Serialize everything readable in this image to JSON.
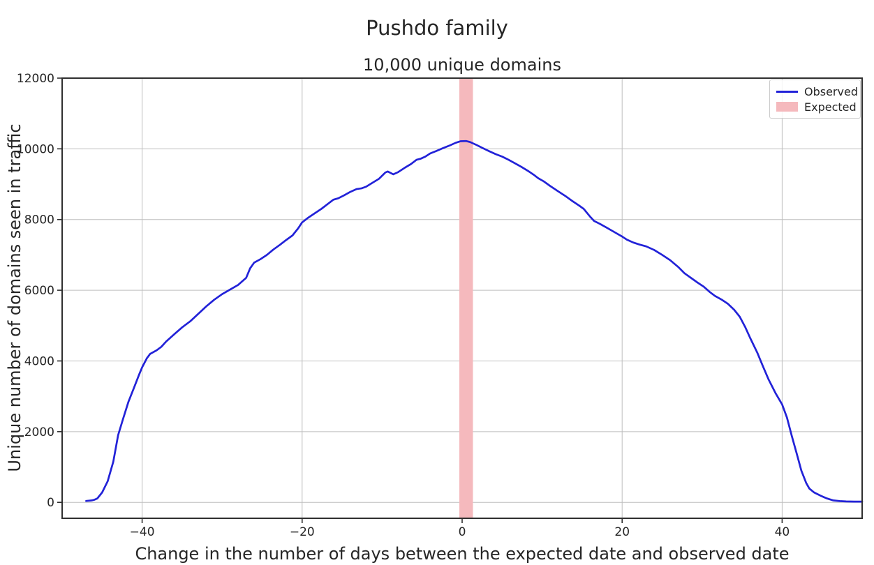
{
  "figure": {
    "suptitle": "Pushdo family",
    "background": "#ffffff"
  },
  "chart_data": {
    "type": "line",
    "title": "10,000 unique domains",
    "xlabel": "Change in the number of days between the expected date and observed date",
    "ylabel": "Unique number of domains seen in traffic",
    "xlim": [
      -50,
      50
    ],
    "ylim": [
      -450,
      12000
    ],
    "xticks": [
      -40,
      -20,
      0,
      20,
      40
    ],
    "yticks": [
      0,
      2000,
      4000,
      6000,
      8000,
      10000,
      12000
    ],
    "grid": true,
    "legend_position": "upper right",
    "colors": {
      "observed": "#2222d8",
      "expected_fill": "#f5b9bd",
      "grid": "#bdbdbd",
      "spine": "#2f2f2f",
      "text": "#262626"
    },
    "band": {
      "label": "Expected",
      "x0": 0,
      "x1": 1
    },
    "series": [
      {
        "name": "Observed",
        "points": [
          [
            -47,
            40
          ],
          [
            -46.3,
            55
          ],
          [
            -46,
            70
          ],
          [
            -45.6,
            110
          ],
          [
            -45,
            280
          ],
          [
            -44.3,
            600
          ],
          [
            -43.6,
            1150
          ],
          [
            -43,
            1900
          ],
          [
            -42.4,
            2350
          ],
          [
            -41.7,
            2850
          ],
          [
            -41,
            3250
          ],
          [
            -40.4,
            3600
          ],
          [
            -40,
            3820
          ],
          [
            -39.4,
            4080
          ],
          [
            -39,
            4200
          ],
          [
            -38.2,
            4300
          ],
          [
            -37.6,
            4400
          ],
          [
            -37,
            4550
          ],
          [
            -36,
            4750
          ],
          [
            -35,
            4950
          ],
          [
            -34,
            5120
          ],
          [
            -33,
            5330
          ],
          [
            -32,
            5540
          ],
          [
            -31,
            5730
          ],
          [
            -30,
            5890
          ],
          [
            -29,
            6020
          ],
          [
            -28,
            6150
          ],
          [
            -27.4,
            6270
          ],
          [
            -27,
            6350
          ],
          [
            -26.5,
            6620
          ],
          [
            -26,
            6780
          ],
          [
            -25.2,
            6880
          ],
          [
            -24.4,
            7000
          ],
          [
            -23.6,
            7150
          ],
          [
            -22.8,
            7280
          ],
          [
            -22,
            7420
          ],
          [
            -21.2,
            7550
          ],
          [
            -20.5,
            7750
          ],
          [
            -20,
            7920
          ],
          [
            -19.2,
            8060
          ],
          [
            -18.4,
            8180
          ],
          [
            -17.6,
            8300
          ],
          [
            -16.8,
            8440
          ],
          [
            -16.1,
            8560
          ],
          [
            -15.5,
            8600
          ],
          [
            -14.8,
            8680
          ],
          [
            -14,
            8780
          ],
          [
            -13.2,
            8860
          ],
          [
            -12.6,
            8880
          ],
          [
            -12,
            8930
          ],
          [
            -11.2,
            9040
          ],
          [
            -10.4,
            9150
          ],
          [
            -9.6,
            9330
          ],
          [
            -9.3,
            9360
          ],
          [
            -8.6,
            9280
          ],
          [
            -8,
            9340
          ],
          [
            -7.2,
            9460
          ],
          [
            -6.4,
            9570
          ],
          [
            -5.7,
            9690
          ],
          [
            -5.2,
            9720
          ],
          [
            -4.6,
            9780
          ],
          [
            -4,
            9870
          ],
          [
            -3.2,
            9940
          ],
          [
            -2.4,
            10020
          ],
          [
            -1.6,
            10090
          ],
          [
            -0.8,
            10170
          ],
          [
            -0.2,
            10215
          ],
          [
            0.5,
            10220
          ],
          [
            1,
            10190
          ],
          [
            1.8,
            10110
          ],
          [
            2.6,
            10020
          ],
          [
            3.4,
            9930
          ],
          [
            4.2,
            9850
          ],
          [
            5,
            9780
          ],
          [
            5.8,
            9690
          ],
          [
            6.6,
            9590
          ],
          [
            7.4,
            9490
          ],
          [
            8.2,
            9380
          ],
          [
            9,
            9260
          ],
          [
            9.5,
            9170
          ],
          [
            10.2,
            9080
          ],
          [
            11,
            8950
          ],
          [
            12,
            8800
          ],
          [
            13,
            8650
          ],
          [
            13.8,
            8520
          ],
          [
            14.6,
            8400
          ],
          [
            15.2,
            8300
          ],
          [
            16,
            8080
          ],
          [
            16.5,
            7960
          ],
          [
            17.2,
            7880
          ],
          [
            18,
            7780
          ],
          [
            19,
            7650
          ],
          [
            20,
            7520
          ],
          [
            20.6,
            7430
          ],
          [
            21.4,
            7350
          ],
          [
            22.2,
            7290
          ],
          [
            23,
            7240
          ],
          [
            24,
            7140
          ],
          [
            25,
            7000
          ],
          [
            26,
            6850
          ],
          [
            27,
            6660
          ],
          [
            27.8,
            6480
          ],
          [
            28.6,
            6350
          ],
          [
            29.4,
            6220
          ],
          [
            30.2,
            6100
          ],
          [
            31,
            5940
          ],
          [
            31.6,
            5840
          ],
          [
            32.4,
            5740
          ],
          [
            33.2,
            5620
          ],
          [
            34,
            5450
          ],
          [
            34.7,
            5250
          ],
          [
            35.4,
            4950
          ],
          [
            36,
            4650
          ],
          [
            36.9,
            4230
          ],
          [
            37.6,
            3850
          ],
          [
            38.3,
            3480
          ],
          [
            39.2,
            3080
          ],
          [
            40,
            2770
          ],
          [
            40.6,
            2400
          ],
          [
            41.2,
            1880
          ],
          [
            41.8,
            1400
          ],
          [
            42.4,
            900
          ],
          [
            43,
            550
          ],
          [
            43.4,
            390
          ],
          [
            44,
            280
          ],
          [
            44.8,
            190
          ],
          [
            45.6,
            110
          ],
          [
            46.4,
            55
          ],
          [
            47.2,
            35
          ],
          [
            48,
            25
          ],
          [
            49,
            22
          ],
          [
            50,
            22
          ]
        ]
      }
    ]
  }
}
